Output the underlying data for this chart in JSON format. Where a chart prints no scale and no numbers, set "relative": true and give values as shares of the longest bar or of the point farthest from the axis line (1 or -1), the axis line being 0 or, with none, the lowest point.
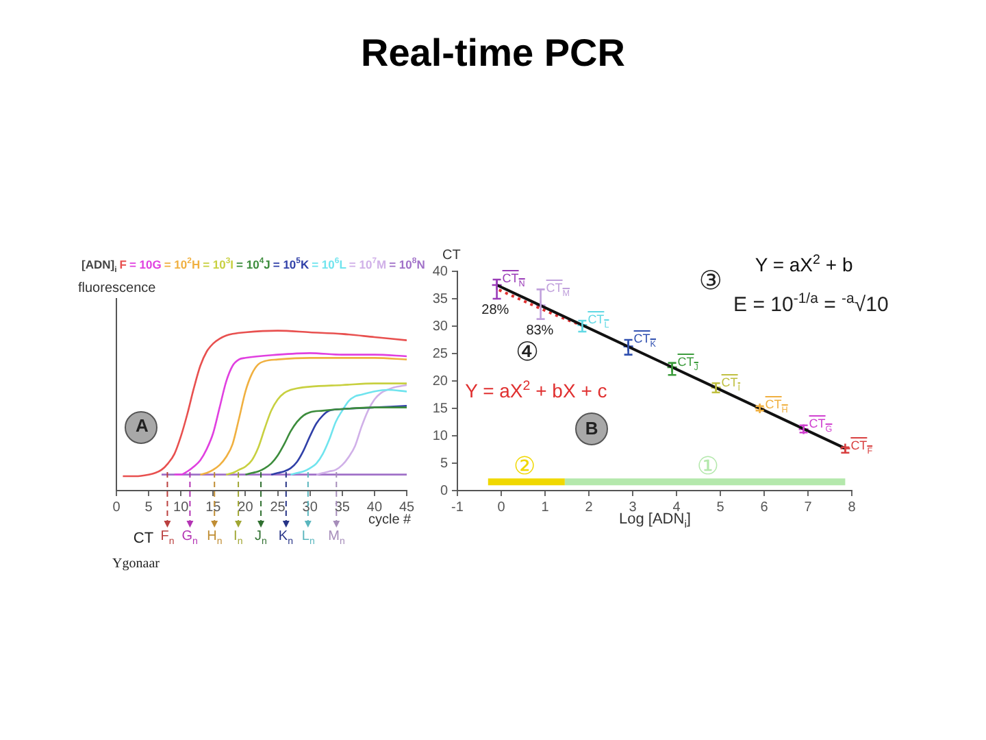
{
  "chart_data": [
    {
      "type": "other",
      "title": "Real-time PCR"
    },
    {
      "type": "line",
      "xlabel": "cycle #",
      "ylabel": "fluorescence",
      "legend_title": "[ADN]$_{i}$",
      "legend": "top",
      "relative": true,
      "marker": "none",
      "xlim": [
        0,
        45
      ],
      "xticks": [
        0,
        5,
        10,
        15,
        20,
        25,
        30,
        35,
        40,
        45
      ],
      "series": [
        {
          "name": "F",
          "color": "#e8504f",
          "x": [
            1,
            3,
            5,
            6,
            7,
            8,
            9,
            10,
            11,
            12,
            13,
            14,
            15,
            16,
            17,
            18,
            20,
            25,
            30,
            35,
            40,
            45
          ],
          "values": [
            0.09,
            0.09,
            0.1,
            0.11,
            0.13,
            0.17,
            0.23,
            0.34,
            0.48,
            0.64,
            0.78,
            0.87,
            0.92,
            0.95,
            0.97,
            0.98,
            0.99,
            1.0,
            0.99,
            0.98,
            0.96,
            0.94
          ]
        },
        {
          "name": "= 10G",
          "color": "#e040e0",
          "x": [
            9,
            10,
            11,
            12,
            13,
            14,
            15,
            16,
            17,
            18,
            19,
            20,
            25,
            30,
            35,
            40,
            45
          ],
          "values": [
            0.1,
            0.1,
            0.12,
            0.15,
            0.19,
            0.26,
            0.36,
            0.52,
            0.68,
            0.78,
            0.82,
            0.83,
            0.85,
            0.86,
            0.85,
            0.85,
            0.84
          ]
        },
        {
          "name": "= 10$^{2}$H",
          "color": "#f0b040",
          "x": [
            13,
            14,
            15,
            16,
            17,
            18,
            19,
            20,
            21,
            22,
            23,
            25,
            30,
            35,
            40,
            45
          ],
          "values": [
            0.1,
            0.11,
            0.13,
            0.16,
            0.21,
            0.29,
            0.45,
            0.62,
            0.73,
            0.79,
            0.81,
            0.82,
            0.83,
            0.83,
            0.83,
            0.82
          ]
        },
        {
          "name": "= 10$^{3}$I",
          "color": "#c8d040",
          "x": [
            17,
            18,
            19,
            20,
            21,
            22,
            23,
            24,
            25,
            26,
            27,
            28,
            30,
            35,
            40,
            45
          ],
          "values": [
            0.1,
            0.11,
            0.13,
            0.15,
            0.19,
            0.27,
            0.39,
            0.5,
            0.57,
            0.61,
            0.63,
            0.64,
            0.65,
            0.66,
            0.67,
            0.67
          ]
        },
        {
          "name": "= 10$^{4}$J",
          "color": "#3c8c3c",
          "x": [
            20,
            21,
            22,
            23,
            24,
            25,
            26,
            27,
            28,
            29,
            30,
            32,
            35,
            40,
            45
          ],
          "values": [
            0.1,
            0.11,
            0.12,
            0.14,
            0.17,
            0.22,
            0.29,
            0.37,
            0.43,
            0.47,
            0.49,
            0.5,
            0.51,
            0.52,
            0.52
          ]
        },
        {
          "name": "= 10$^{5}$K",
          "color": "#3040a8",
          "x": [
            24,
            25,
            26,
            27,
            28,
            29,
            30,
            31,
            32,
            33,
            35,
            40,
            45
          ],
          "values": [
            0.1,
            0.11,
            0.12,
            0.14,
            0.18,
            0.25,
            0.34,
            0.42,
            0.47,
            0.5,
            0.51,
            0.52,
            0.53
          ]
        },
        {
          "name": "= 10$^{6}$L",
          "color": "#70e4ee",
          "x": [
            27,
            28,
            29,
            30,
            31,
            32,
            33,
            34,
            35,
            36,
            37,
            38,
            40,
            42,
            45
          ],
          "values": [
            0.1,
            0.11,
            0.12,
            0.14,
            0.17,
            0.23,
            0.32,
            0.43,
            0.5,
            0.56,
            0.59,
            0.6,
            0.62,
            0.63,
            0.62
          ]
        },
        {
          "name": "= 10$^{7}$M",
          "color": "#d0b0e8",
          "x": [
            31,
            32,
            33,
            34,
            35,
            36,
            37,
            38,
            39,
            40,
            41,
            42,
            43,
            45
          ],
          "values": [
            0.1,
            0.11,
            0.12,
            0.13,
            0.16,
            0.21,
            0.28,
            0.4,
            0.5,
            0.57,
            0.61,
            0.63,
            0.645,
            0.66
          ]
        },
        {
          "name": "= 10$^{8}$N",
          "color": "#a070c8",
          "x": [
            7,
            45
          ],
          "values": [
            0.1,
            0.1
          ]
        }
      ],
      "ref_lines": [
        {
          "axis": "x",
          "value": 7.9,
          "label": "F$_{n}$",
          "color": "#ba403f",
          "line_style": "dashed"
        },
        {
          "axis": "x",
          "value": 11.4,
          "label": "G$_{n}$",
          "color": "#b333b3",
          "line_style": "dashed"
        },
        {
          "axis": "x",
          "value": 15.2,
          "label": "H$_{n}$",
          "color": "#c08d33",
          "line_style": "dashed"
        },
        {
          "axis": "x",
          "value": 18.9,
          "label": "I$_{n}$",
          "color": "#a0a633",
          "line_style": "dashed"
        },
        {
          "axis": "x",
          "value": 22.4,
          "label": "J$_{n}$",
          "color": "#307030",
          "line_style": "dashed"
        },
        {
          "axis": "x",
          "value": 26.3,
          "label": "K$_{n}$",
          "color": "#263386",
          "line_style": "dashed"
        },
        {
          "axis": "x",
          "value": 29.7,
          "label": "L$_{n}$",
          "color": "#5ab6be",
          "line_style": "dashed"
        },
        {
          "axis": "x",
          "value": 34.1,
          "label": "M$_{n}$",
          "color": "#a68dba",
          "line_style": "dashed"
        }
      ],
      "annotations": [
        "A",
        "CT",
        "Ygonaar"
      ]
    },
    {
      "type": "scatter",
      "xlabel": "Log [ADN$_{i}$]",
      "ylabel": "CT",
      "xlim": [
        -1,
        8
      ],
      "ylim": [
        0,
        40
      ],
      "xticks": [
        -1,
        0,
        1,
        2,
        3,
        4,
        5,
        6,
        7,
        8
      ],
      "yticks": [
        0,
        5,
        10,
        15,
        20,
        25,
        30,
        35,
        40
      ],
      "series": [
        {
          "name": "Y = aX$^{2}$ + b",
          "type": "line",
          "color": "#111111",
          "x": [
            -0.1,
            7.85
          ],
          "values": [
            37.5,
            7.7
          ]
        },
        {
          "name": "Y = aX$^{2}$ + bX + c",
          "type": "line",
          "color": "#e03030",
          "line_style": "dotted",
          "x": [
            -0.05,
            0.4,
            0.9,
            1.4,
            1.85
          ],
          "values": [
            36.6,
            35.0,
            33.2,
            31.5,
            30.1
          ]
        },
        {
          "name": "②",
          "type": "line",
          "color": "#f0d800",
          "x": [
            -0.3,
            1.45
          ],
          "values": [
            1.6,
            1.6
          ]
        },
        {
          "name": "①",
          "type": "line",
          "color": "#b4e8ac",
          "x": [
            1.45,
            7.85
          ],
          "values": [
            1.6,
            1.6
          ]
        },
        {
          "name": "CT$_{N}$",
          "color": "#9a3cb8",
          "marker": "cross",
          "x": [
            -0.1
          ],
          "values": [
            37.5
          ],
          "errors": [
            [
              35,
              38.5
            ]
          ]
        },
        {
          "name": "CT$_{M}$",
          "color": "#c0a0dc",
          "marker": "cross",
          "x": [
            0.9
          ],
          "values": [
            33.8
          ],
          "errors": [
            [
              31.3,
              36.7
            ]
          ]
        },
        {
          "name": "CT$_{L}$",
          "color": "#60d8e4",
          "marker": "cross",
          "x": [
            1.85
          ],
          "values": [
            30.2
          ],
          "errors": [
            [
              29,
              31
            ]
          ]
        },
        {
          "name": "CT$_{K}$",
          "color": "#3050b0",
          "marker": "cross",
          "x": [
            2.9
          ],
          "values": [
            26.3
          ],
          "errors": [
            [
              24.8,
              27.5
            ]
          ]
        },
        {
          "name": "CT$_{J}$",
          "color": "#3c9c3c",
          "marker": "cross",
          "x": [
            3.9
          ],
          "values": [
            22.5
          ],
          "errors": [
            [
              21.1,
              23.3
            ]
          ]
        },
        {
          "name": "CT$_{I}$",
          "color": "#c0c040",
          "marker": "cross",
          "x": [
            4.9
          ],
          "values": [
            18.8
          ],
          "errors": [
            [
              17.9,
              19.6
            ]
          ]
        },
        {
          "name": "CT$_{H}$",
          "color": "#f0b040",
          "marker": "cross",
          "x": [
            5.9
          ],
          "values": [
            15
          ],
          "errors": [
            [
              14.6,
              15.4
            ]
          ]
        },
        {
          "name": "CT$_{G}$",
          "color": "#d040d0",
          "marker": "cross",
          "x": [
            6.9
          ],
          "values": [
            11.2
          ],
          "errors": [
            [
              10.6,
              11.9
            ]
          ]
        },
        {
          "name": "CT$_{F}$",
          "color": "#d84040",
          "marker": "cross",
          "x": [
            7.85
          ],
          "values": [
            7.7
          ],
          "errors": [
            [
              6.9,
              7.9
            ]
          ]
        }
      ],
      "annotations": [
        "B",
        "③",
        "E = 10$^{-1/a}$ = $^{-a}$√10",
        "④",
        "28%",
        "83%"
      ]
    }
  ]
}
